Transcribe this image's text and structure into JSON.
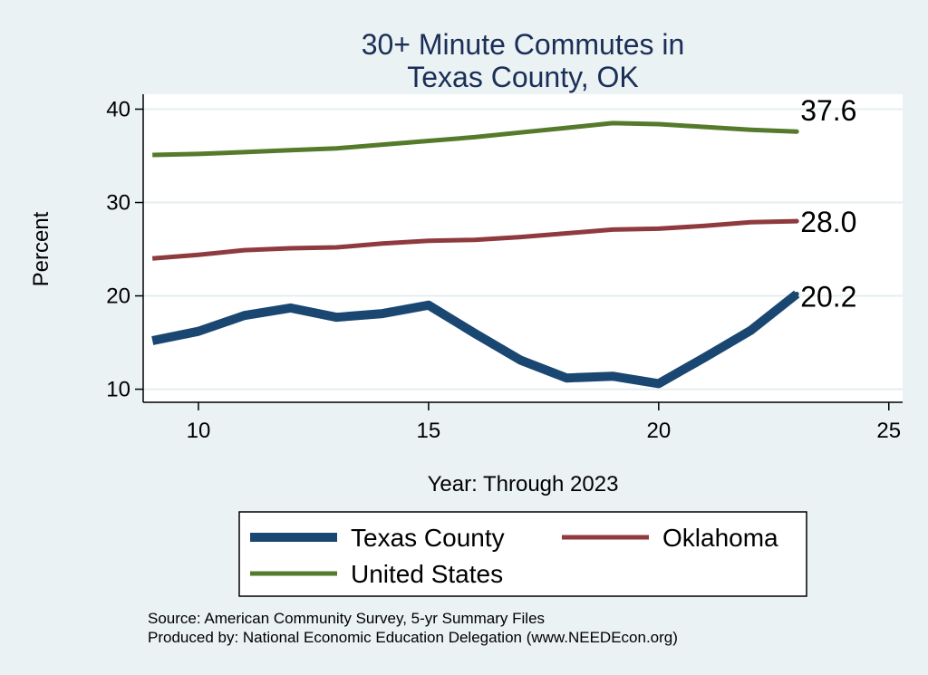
{
  "chart_data": {
    "type": "line",
    "title": [
      "30+ Minute Commutes in",
      "Texas County, OK"
    ],
    "xlabel": "Year: Through 2023",
    "ylabel": "Percent",
    "xlim": [
      8.8,
      25.3
    ],
    "ylim": [
      8.6,
      41.6
    ],
    "xticks": [
      10,
      15,
      20,
      25
    ],
    "yticks": [
      10,
      20,
      30,
      40
    ],
    "grid": true,
    "legend_position": "bottom",
    "series": [
      {
        "name": "Texas County",
        "color": "#1a4771",
        "line_weight": "thick",
        "x": [
          9,
          10,
          11,
          12,
          13,
          14,
          15,
          16,
          17,
          18,
          19,
          20,
          21,
          22,
          23
        ],
        "values": [
          15.2,
          16.2,
          17.9,
          18.7,
          17.7,
          18.1,
          19.0,
          16.0,
          13.1,
          11.2,
          11.4,
          10.6,
          13.4,
          16.3,
          20.2
        ],
        "end_label": "20.2"
      },
      {
        "name": "Oklahoma",
        "color": "#8e3a3e",
        "line_weight": "medium",
        "x": [
          9,
          10,
          11,
          12,
          13,
          14,
          15,
          16,
          17,
          18,
          19,
          20,
          21,
          22,
          23
        ],
        "values": [
          24.0,
          24.4,
          24.9,
          25.1,
          25.2,
          25.6,
          25.9,
          26.0,
          26.3,
          26.7,
          27.1,
          27.2,
          27.5,
          27.9,
          28.0
        ],
        "end_label": "28.0"
      },
      {
        "name": "United States",
        "color": "#557a2b",
        "line_weight": "medium",
        "x": [
          9,
          10,
          11,
          12,
          13,
          14,
          15,
          16,
          17,
          18,
          19,
          20,
          21,
          22,
          23
        ],
        "values": [
          35.1,
          35.2,
          35.4,
          35.6,
          35.8,
          36.2,
          36.6,
          37.0,
          37.5,
          38.0,
          38.5,
          38.4,
          38.1,
          37.8,
          37.6
        ],
        "end_label": "37.6"
      }
    ],
    "notes": [
      "Source: American Community Survey, 5-yr Summary Files",
      "Produced by: National Economic Education Delegation (www.NEEDEcon.org)"
    ]
  }
}
